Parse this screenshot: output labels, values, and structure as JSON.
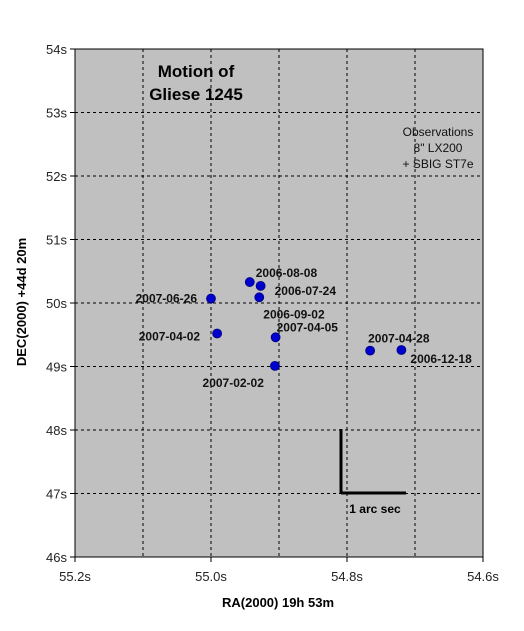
{
  "chart_data": {
    "type": "scatter",
    "title_lines": [
      "Motion of",
      "Gliese 1245"
    ],
    "xlabel": "RA(2000) 19h 53m",
    "ylabel": "DEC(2000) +44d 20m",
    "xlim": [
      55.2,
      54.6
    ],
    "x_reversed": true,
    "ylim": [
      46,
      54
    ],
    "x_ticks": [
      {
        "value": 55.2,
        "label": "55.2s"
      },
      {
        "value": 55.0,
        "label": "55.0s"
      },
      {
        "value": 54.8,
        "label": "54.8s"
      },
      {
        "value": 54.6,
        "label": "54.6s"
      }
    ],
    "x_grid": [
      55.2,
      55.1,
      55.0,
      54.9,
      54.8,
      54.7,
      54.6
    ],
    "y_ticks": [
      {
        "value": 46,
        "label": "46s"
      },
      {
        "value": 47,
        "label": "47s"
      },
      {
        "value": 48,
        "label": "48s"
      },
      {
        "value": 49,
        "label": "49s"
      },
      {
        "value": 50,
        "label": "50s"
      },
      {
        "value": 51,
        "label": "51s"
      },
      {
        "value": 52,
        "label": "52s"
      },
      {
        "value": 53,
        "label": "53s"
      },
      {
        "value": 54,
        "label": "54s"
      }
    ],
    "grid": true,
    "plot_background": "#c0c0c0",
    "marker_color": "#0000cc",
    "points": [
      {
        "label": "2006-08-08",
        "x": 54.943,
        "y": 50.33
      },
      {
        "label": "2006-07-24",
        "x": 54.927,
        "y": 50.27
      },
      {
        "label": "2006-09-02",
        "x": 54.929,
        "y": 50.09
      },
      {
        "label": "2007-06-26",
        "x": 55.0,
        "y": 50.07
      },
      {
        "label": "2007-04-05",
        "x": 54.905,
        "y": 49.46
      },
      {
        "label": "2007-04-02",
        "x": 54.991,
        "y": 49.52
      },
      {
        "label": "2007-02-02",
        "x": 54.906,
        "y": 49.01
      },
      {
        "label": "2007-04-28",
        "x": 54.766,
        "y": 49.25
      },
      {
        "label": "2006-12-18",
        "x": 54.72,
        "y": 49.26
      }
    ],
    "annotation_lines": [
      "Observations",
      "8\" LX200",
      "+ SBIG ST7e"
    ],
    "scale_bar_label": "1 arc sec"
  }
}
